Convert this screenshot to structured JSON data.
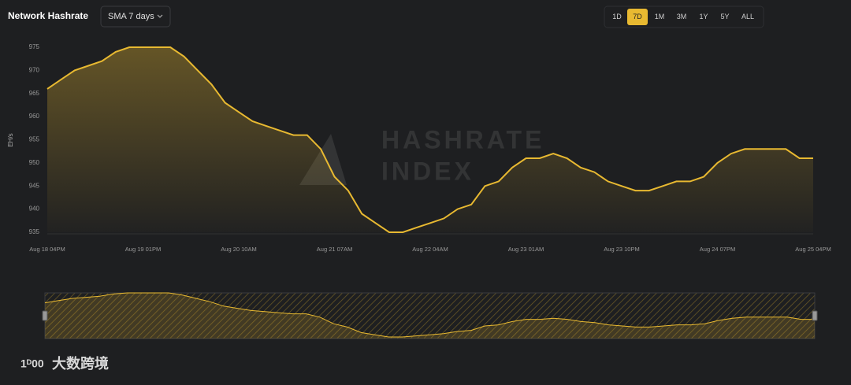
{
  "header": {
    "title": "Network Hashrate",
    "dropdown": "SMA 7 days",
    "ranges": [
      "1D",
      "7D",
      "1M",
      "3M",
      "1Y",
      "5Y",
      "ALL"
    ],
    "selected_range": 1
  },
  "watermark": [
    "HASHRATE",
    "INDEX"
  ],
  "footer_logo": "大数跨境",
  "chart_data": {
    "type": "area",
    "y_label": "EH/s",
    "color": "#e8b931",
    "categories": [
      "Aug 18 04PM",
      null,
      null,
      null,
      null,
      null,
      null,
      "Aug 19 01PM",
      null,
      null,
      null,
      null,
      null,
      null,
      "Aug 20 10AM",
      null,
      null,
      null,
      null,
      null,
      null,
      "Aug 21 07AM",
      null,
      null,
      null,
      null,
      null,
      null,
      "Aug 22 04AM",
      null,
      null,
      null,
      null,
      null,
      null,
      "Aug 23 01AM",
      null,
      null,
      null,
      null,
      null,
      null,
      "Aug 23 10PM",
      null,
      null,
      null,
      null,
      null,
      null,
      "Aug 24 07PM",
      null,
      null,
      null,
      null,
      null,
      null,
      "Aug 25 04PM"
    ],
    "values": [
      966,
      968,
      970,
      971,
      972,
      974,
      975,
      975,
      975,
      975,
      973,
      970,
      967,
      963,
      961,
      959,
      958,
      957,
      956,
      956,
      953,
      947,
      944,
      939,
      937,
      935,
      935,
      936,
      937,
      938,
      940,
      941,
      945,
      946,
      949,
      951,
      951,
      952,
      951,
      949,
      948,
      946,
      945,
      944,
      944,
      945,
      946,
      946,
      947,
      950,
      952,
      953,
      953,
      953,
      953,
      951,
      951
    ],
    "ylim": [
      935,
      975
    ],
    "yticks": [
      935,
      940,
      945,
      950,
      955,
      960,
      965,
      970,
      975
    ],
    "grid": false,
    "navigator": true
  }
}
